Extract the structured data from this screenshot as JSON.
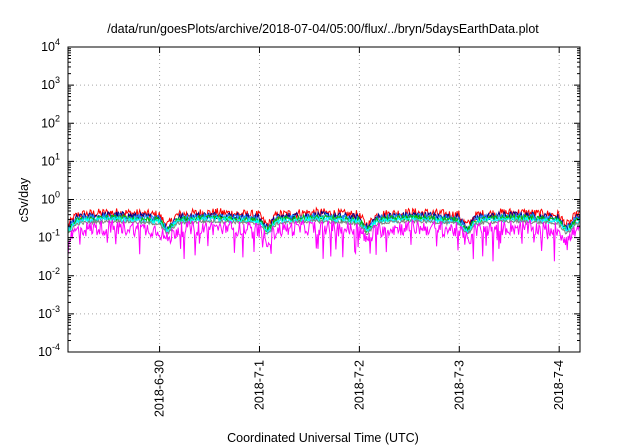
{
  "chart_data": {
    "type": "line",
    "title": "/data/run/goesPlots/archive/2018-07-04/05:00/flux/../bryn/5daysEarthData.plot",
    "xlabel": "Coordinated Universal Time (UTC)",
    "ylabel": "cSv/day",
    "y_scale": "log",
    "ylim": [
      0.0001,
      10000
    ],
    "yticks": [
      {
        "base": "10",
        "exp": "-4"
      },
      {
        "base": "10",
        "exp": "-3"
      },
      {
        "base": "10",
        "exp": "-2"
      },
      {
        "base": "10",
        "exp": "-1"
      },
      {
        "base": "10",
        "exp": "0"
      },
      {
        "base": "10",
        "exp": "1"
      },
      {
        "base": "10",
        "exp": "2"
      },
      {
        "base": "10",
        "exp": "3"
      },
      {
        "base": "10",
        "exp": "4"
      }
    ],
    "xlim": [
      "2018-06-29 02:00",
      "2018-07-04 05:00"
    ],
    "xticks": [
      {
        "label": "2018-6-30",
        "date": "2018-06-30"
      },
      {
        "label": "2018-7-1",
        "date": "2018-07-01"
      },
      {
        "label": "2018-7-2",
        "date": "2018-07-02"
      },
      {
        "label": "2018-7-3",
        "date": "2018-07-03"
      },
      {
        "label": "2018-7-4",
        "date": "2018-07-04"
      }
    ],
    "grid": true,
    "series": [
      {
        "color": "#ff0000",
        "base": 0.42,
        "noise": 0.55
      },
      {
        "color": "#00008b",
        "base": 0.36,
        "noise": 0.45
      },
      {
        "color": "#1e90ff",
        "base": 0.33,
        "noise": 0.4
      },
      {
        "color": "#00c000",
        "base": 0.31,
        "noise": 0.35
      },
      {
        "color": "#00ffff",
        "base": 0.28,
        "noise": 0.3
      },
      {
        "color": "#808080",
        "base": 0.25,
        "noise": 0.2
      },
      {
        "color": "#ff00ff",
        "base": 0.17,
        "noise": 0.9
      }
    ],
    "note_series": "approximate values: dense noisy flux series near 0.1-0.5 cSv/day with daily dips"
  }
}
